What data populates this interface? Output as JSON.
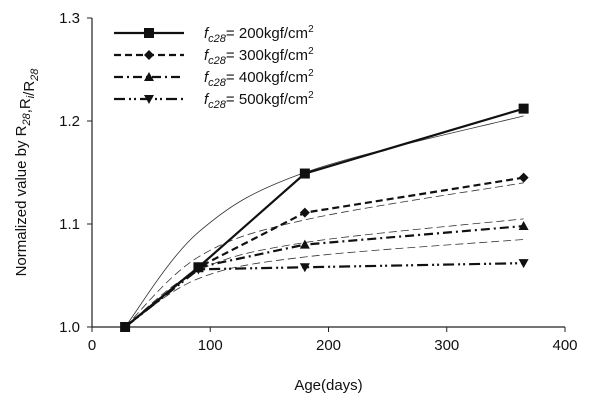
{
  "chart_data": {
    "type": "line",
    "xlabel": "Age(days)",
    "ylabel": "Normalized value by R28,Ri/R28",
    "ylabel_parts": {
      "main": "Normalized value by R",
      "sub1": "28",
      "mid": ",R",
      "sub2": "i",
      "slash": "/R",
      "sub3": "28"
    },
    "xlim": [
      0,
      400
    ],
    "ylim": [
      1.0,
      1.3
    ],
    "xticks": [
      0,
      100,
      200,
      300,
      400
    ],
    "yticks": [
      1.0,
      1.1,
      1.2,
      1.3
    ],
    "xtick_labels": [
      "0",
      "100",
      "200",
      "300",
      "400"
    ],
    "ytick_labels": [
      "1.0",
      "1.1",
      "1.2",
      "1.3"
    ],
    "grid": false,
    "legend_position": "top-left",
    "series": [
      {
        "name": "fc28= 200kgf/cm2",
        "legend_sym": "f",
        "legend_sub": "c28",
        "legend_val": "= 200kgf/cm",
        "legend_sup": "2",
        "marker": "square",
        "dash": "solid",
        "x": [
          28,
          90,
          180,
          365
        ],
        "y": [
          1.0,
          1.058,
          1.149,
          1.212
        ],
        "fit_y": [
          1.0,
          1.092,
          1.15,
          1.205
        ]
      },
      {
        "name": "fc28= 300kgf/cm2",
        "legend_sym": "f",
        "legend_sub": "c28",
        "legend_val": "= 300kgf/cm",
        "legend_sup": "2",
        "marker": "diamond",
        "dash": "dash",
        "x": [
          28,
          90,
          180,
          365
        ],
        "y": [
          1.0,
          1.058,
          1.111,
          1.145
        ],
        "fit_y": [
          1.0,
          1.068,
          1.104,
          1.14
        ]
      },
      {
        "name": "fc28= 400kgf/cm2",
        "legend_sym": "f",
        "legend_sub": "c28",
        "legend_val": "= 400kgf/cm",
        "legend_sup": "2",
        "marker": "triangle-up",
        "dash": "dashdot",
        "x": [
          28,
          90,
          180,
          365
        ],
        "y": [
          1.0,
          1.058,
          1.08,
          1.098
        ],
        "fit_y": [
          1.0,
          1.055,
          1.082,
          1.105
        ]
      },
      {
        "name": "fc28= 500kgf/cm2",
        "legend_sym": "f",
        "legend_sub": "c28",
        "legend_val": "= 500kgf/cm",
        "legend_sup": "2",
        "marker": "triangle-down",
        "dash": "dashdotdot",
        "x": [
          28,
          90,
          180,
          365
        ],
        "y": [
          1.0,
          1.056,
          1.058,
          1.062
        ],
        "fit_y": [
          1.0,
          1.047,
          1.068,
          1.085
        ]
      }
    ]
  }
}
